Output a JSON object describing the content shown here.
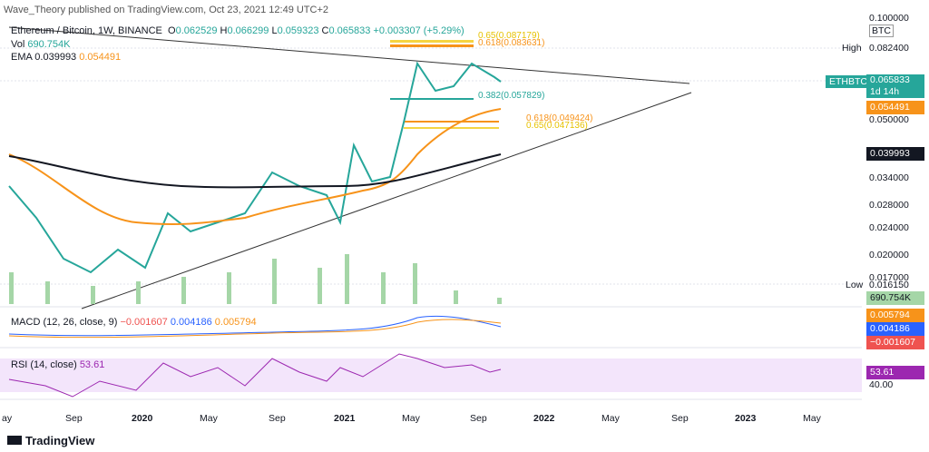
{
  "header": {
    "publisher": "Wave_Theory published on TradingView.com, Oct 23, 2021 12:49 UTC+2"
  },
  "legend": {
    "symbol": "Ethereum / Bitcoin, 1W, BINANCE",
    "open_label": "O",
    "open": "0.062529",
    "high_label": "H",
    "high": "0.066299",
    "low_label": "L",
    "low": "0.059323",
    "close_label": "C",
    "close": "0.065833",
    "change": "+0.003307 (+5.29%)",
    "vol_label": "Vol",
    "vol": "690.754K",
    "ema_label": "EMA",
    "ema1": "0.039993",
    "ema2": "0.054491"
  },
  "fib": [
    "0.65(0.087179)",
    "0.618(0.083631)",
    "0.382(0.057829)",
    "0.618(0.049424)",
    "0.65(0.047136)"
  ],
  "price_axis": {
    "top": "0.100000",
    "currency": "BTC",
    "high_label": "High",
    "high": "0.082400",
    "symbol": "ETHBTC",
    "last": "0.065833",
    "countdown": "1d 14h",
    "ema2": "0.054491",
    "p050": "0.050000",
    "ema1": "0.039993",
    "p034": "0.034000",
    "p028": "0.028000",
    "p024": "0.024000",
    "p020": "0.020000",
    "p017": "0.017000",
    "low_label": "Low",
    "low": "0.016150",
    "vol": "690.754K"
  },
  "macd": {
    "title": "MACD (12, 26, close, 9)",
    "hist": "−0.001607",
    "macd": "0.004186",
    "signal": "0.005794"
  },
  "rsi": {
    "title": "RSI (14, close)",
    "value": "53.61",
    "level": "40.00"
  },
  "time_axis": [
    "ay",
    "Sep",
    "2020",
    "May",
    "Sep",
    "2021",
    "May",
    "Sep",
    "2022",
    "May",
    "Sep",
    "2023",
    "May"
  ],
  "footer": {
    "brand": "TradingView"
  }
}
